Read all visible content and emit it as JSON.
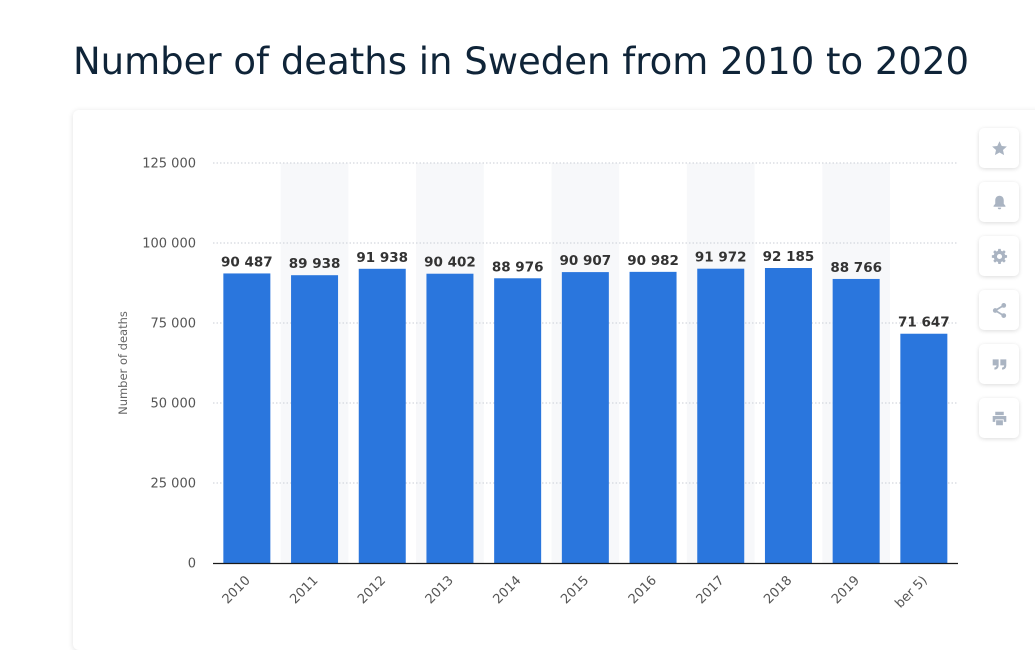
{
  "page": {
    "title": "Number of deaths in Sweden from 2010 to 2020"
  },
  "toolbar": [
    {
      "name": "star-icon"
    },
    {
      "name": "bell-icon"
    },
    {
      "name": "gear-icon"
    },
    {
      "name": "share-icon"
    },
    {
      "name": "quote-icon"
    },
    {
      "name": "print-icon"
    }
  ],
  "colors": {
    "bar": "#2a76dd",
    "band": "#f7f8fa",
    "grid": "#c9ced6",
    "axis": "#1a1a1a",
    "label": "#333333",
    "tick": "#555555"
  },
  "chart_data": {
    "type": "bar",
    "title": "Number of deaths in Sweden from 2010 to 2020",
    "ylabel": "Number of deaths",
    "xlabel": "",
    "ylim": [
      0,
      125000
    ],
    "yticks": [
      0,
      25000,
      50000,
      75000,
      100000,
      125000
    ],
    "ytick_labels": [
      "0",
      "25 000",
      "50 000",
      "75 000",
      "100 000",
      "125 000"
    ],
    "grid": true,
    "categories": [
      "2010",
      "2011",
      "2012",
      "2013",
      "2014",
      "2015",
      "2016",
      "2017",
      "2018",
      "2019",
      "ber 5)"
    ],
    "values": [
      90487,
      89938,
      91938,
      90402,
      88976,
      90907,
      90982,
      91972,
      92185,
      88766,
      71647
    ],
    "value_labels": [
      "90 487",
      "89 938",
      "91 938",
      "90 402",
      "88 976",
      "90 907",
      "90 982",
      "91 972",
      "92 185",
      "88 766",
      "71 647"
    ]
  }
}
